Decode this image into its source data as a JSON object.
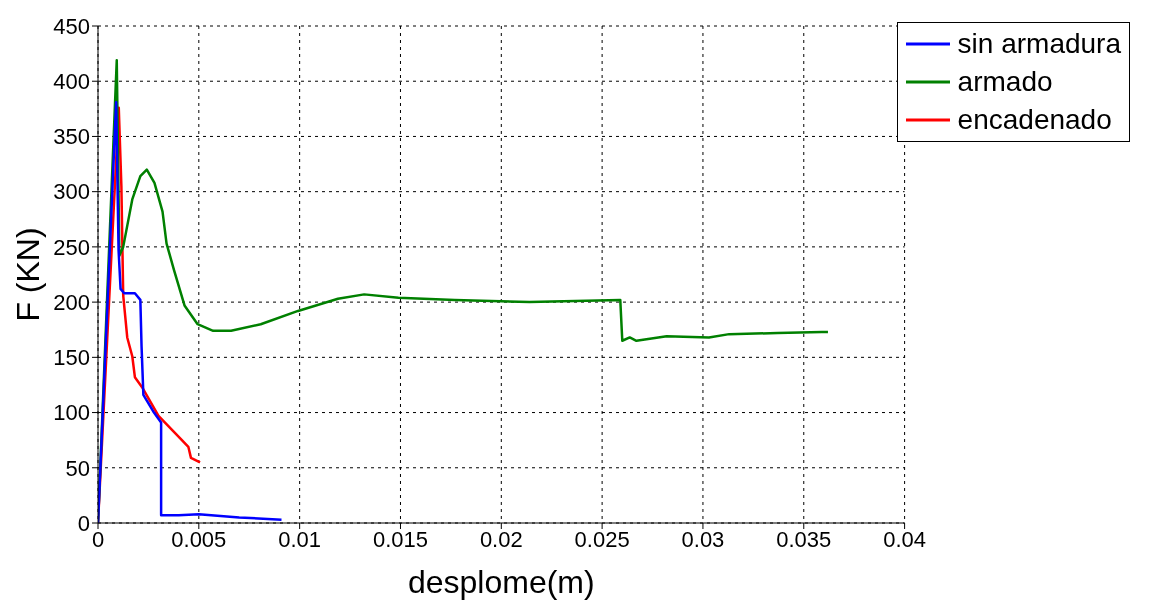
{
  "chart_data": {
    "type": "line",
    "xlabel": "desplome(m)",
    "ylabel": "F (KN)",
    "xlim": [
      0,
      0.04
    ],
    "xticks": [
      0,
      0.005,
      0.01,
      0.015,
      0.02,
      0.025,
      0.03,
      0.035,
      0.04
    ],
    "ylim": [
      0,
      450
    ],
    "yticks": [
      0,
      50,
      100,
      150,
      200,
      250,
      300,
      350,
      400,
      450
    ],
    "grid": true,
    "legend": "top right",
    "line_style": "solid",
    "marker": "none",
    "series": [
      {
        "name": "sin armadura",
        "color": "#0000ff",
        "x": [
          0,
          0.0009,
          0.00102,
          0.00112,
          0.0013,
          0.00183,
          0.0021,
          0.00216,
          0.00225,
          0.00274,
          0.00313,
          0.00313,
          0.004,
          0.005,
          0.007,
          0.0091
        ],
        "values": [
          0,
          381,
          247,
          212,
          208,
          208,
          202,
          160,
          116,
          101,
          91,
          7,
          7,
          8,
          5,
          3
        ]
      },
      {
        "name": "armado",
        "color": "#008000",
        "x": [
          0,
          0.00093,
          0.00106,
          0.00125,
          0.0017,
          0.0021,
          0.00242,
          0.0028,
          0.0032,
          0.0034,
          0.00377,
          0.00429,
          0.00494,
          0.00571,
          0.0066,
          0.00807,
          0.00992,
          0.0119,
          0.0132,
          0.0149,
          0.0177,
          0.0214,
          0.0259,
          0.026,
          0.02637,
          0.0267,
          0.0282,
          0.0303,
          0.0313,
          0.0337,
          0.0359,
          0.0362
        ],
        "values": [
          0,
          419,
          242,
          250,
          293,
          314,
          320,
          308,
          282,
          253,
          229,
          197,
          180,
          174,
          174,
          180,
          192,
          203,
          207,
          204,
          202,
          200,
          202,
          165,
          168,
          165,
          169,
          168,
          171,
          172,
          173,
          173
        ]
      },
      {
        "name": "encadenado",
        "color": "#ff0000",
        "x": [
          0,
          0.00103,
          0.00116,
          0.00125,
          0.00145,
          0.0017,
          0.00183,
          0.00222,
          0.003,
          0.00416,
          0.00448,
          0.00461,
          0.00506
        ],
        "values": [
          0,
          376,
          305,
          206,
          168,
          151,
          132,
          122,
          97,
          75,
          69,
          59,
          55
        ]
      }
    ]
  }
}
